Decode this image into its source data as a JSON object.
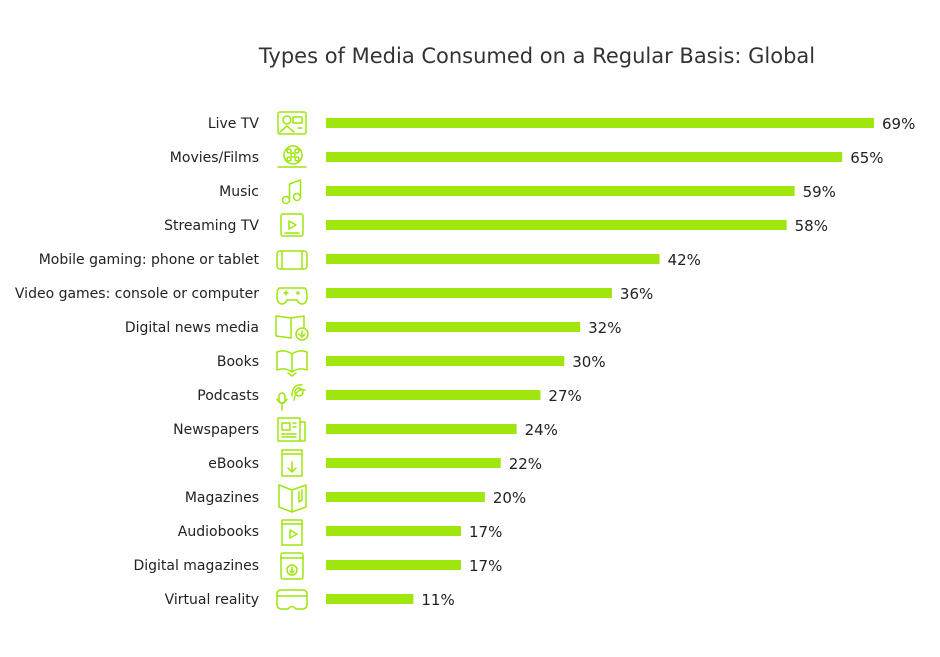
{
  "chart_data": {
    "type": "bar",
    "orientation": "horizontal",
    "title": "Types of Media Consumed on a Regular Basis: Global",
    "categories": [
      "Live TV",
      "Movies/Films",
      "Music",
      "Streaming TV",
      "Mobile gaming: phone or tablet",
      "Video games: console or computer",
      "Digital news media",
      "Books",
      "Podcasts",
      "Newspapers",
      "eBooks",
      "Magazines",
      "Audiobooks",
      "Digital magazines",
      "Virtual reality"
    ],
    "values": [
      69,
      65,
      59,
      58,
      42,
      36,
      32,
      30,
      27,
      24,
      22,
      20,
      17,
      17,
      11
    ],
    "value_labels": [
      "69%",
      "65%",
      "59%",
      "58%",
      "42%",
      "36%",
      "32%",
      "30%",
      "27%",
      "24%",
      "22%",
      "20%",
      "17%",
      "17%",
      "11%"
    ],
    "icons": [
      "tv-icon",
      "film-reel-icon",
      "music-note-icon",
      "play-screen-icon",
      "phone-landscape-icon",
      "gamepad-icon",
      "book-download-icon",
      "open-book-icon",
      "microphone-icon",
      "newspaper-icon",
      "ebook-icon",
      "magazine-icon",
      "audiobook-icon",
      "digital-magazine-icon",
      "vr-headset-icon"
    ],
    "xlim": [
      0,
      69
    ],
    "grid": false,
    "legend": "none",
    "colors": {
      "bar": "#9ee60d",
      "icon": "#9ee60d",
      "text": "#222222"
    }
  }
}
